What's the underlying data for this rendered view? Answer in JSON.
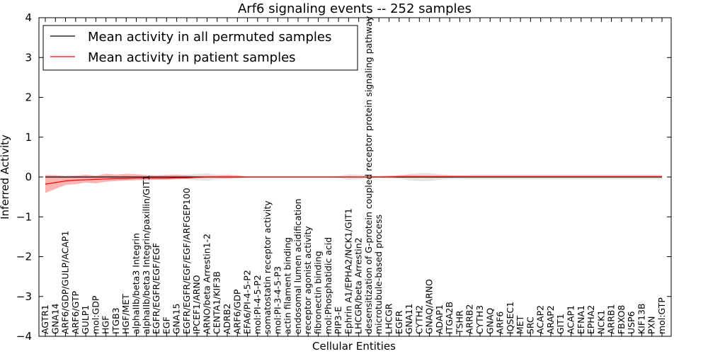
{
  "chart_data": {
    "type": "line",
    "title": "Arf6 signaling events -- 252 samples",
    "xlabel": "Cellular Entities",
    "ylabel": "Inferred Activity",
    "ylim": [
      -4,
      4
    ],
    "yticks": [
      -4,
      -3,
      -2,
      -1,
      0,
      1,
      2,
      3,
      4
    ],
    "grid": false,
    "legend_position": "top-left",
    "categories": [
      "AGTR1",
      "GNA14",
      "ARF6/GDP/GULP/ACAP1",
      "ARF6/GTP",
      "GULP1",
      "mol:GDP",
      "HGF",
      "ITGB3",
      "HGF/MET",
      "alphaIIb/beta3 Integrin",
      "alphaIIb/beta3 Integrin/paxillin/GIT1",
      "EGFR/EGFR/EGF/EGF",
      "EGF",
      "GNA15",
      "EGFR/EGFR/EGF/EGF/ARFGEP100",
      "IPCEF1/ARNO",
      "ARNO/beta Arrestin1-2",
      "CENTA1/KIF3B",
      "ADRB2",
      "ARF6/GDP",
      "EFA6/PI-4-5-P2",
      "mol:PI-4-5-P2",
      "somatostatin receptor activity",
      "mol:PI-3-4-5-P3",
      "actin filament binding",
      "endosomal lumen acidification",
      "receptor agonist activity",
      "fibronectin binding",
      "mol:Phosphatidic acid",
      "PIP3-E",
      "Ephrin A1/EPHA2/NCK1/GIT1",
      "LHCGR/beta Arrestin2",
      "desensitization of G-protein coupled receptor protein signaling pathway",
      "microtubule-based process",
      "LHCGR",
      "EGFR",
      "GNA11",
      "CYTH2",
      "GNAQ/ARNO",
      "ADAP1",
      "ITGA2B",
      "TSHR",
      "ARRB2",
      "CYTH3",
      "GNAQ",
      "ARF6",
      "IQSEC1",
      "MET",
      "SRC",
      "ACAP2",
      "ARAP2",
      "GIT1",
      "ACAP1",
      "EFNA1",
      "EPHA2",
      "NCK1",
      "ARRB1",
      "FBXO8",
      "USP6",
      "KIF13B",
      "PXN",
      "mol:GTP"
    ],
    "series": [
      {
        "name": "Mean activity in all permuted samples",
        "color": "#000000",
        "values": [
          0.0,
          0.0,
          0.0,
          0.0,
          0.0,
          0.0,
          0.0,
          0.0,
          0.0,
          0.0,
          0.0,
          0.0,
          0.0,
          0.0,
          0.0,
          0.0,
          0.0,
          0.0,
          0.0,
          0.0,
          0.0,
          0.0,
          0.0,
          0.0,
          0.0,
          0.0,
          0.0,
          0.0,
          0.0,
          0.0,
          0.0,
          0.0,
          0.0,
          0.0,
          0.0,
          0.0,
          0.0,
          0.0,
          0.0,
          0.0,
          0.0,
          0.0,
          0.0,
          0.0,
          0.0,
          0.0,
          0.0,
          0.0,
          0.0,
          0.0,
          0.0,
          0.0,
          0.0,
          0.0,
          0.0,
          0.0,
          0.0,
          0.0,
          0.0,
          0.0,
          0.0,
          0.0
        ],
        "band_lower": [
          -0.05,
          -0.05,
          -0.04,
          -0.04,
          -0.04,
          -0.04,
          -0.04,
          -0.04,
          -0.04,
          -0.04,
          -0.04,
          -0.04,
          -0.05,
          -0.05,
          -0.06,
          -0.08,
          -0.09,
          -0.06,
          -0.05,
          -0.04,
          -0.01,
          -0.01,
          -0.01,
          -0.01,
          -0.01,
          -0.01,
          -0.01,
          -0.01,
          -0.01,
          -0.02,
          -0.07,
          -0.06,
          -0.04,
          -0.02,
          -0.03,
          -0.04,
          -0.08,
          -0.1,
          -0.1,
          -0.07,
          -0.05,
          -0.05,
          -0.06,
          -0.06,
          -0.06,
          -0.06,
          -0.06,
          -0.06,
          -0.06,
          -0.06,
          -0.06,
          -0.06,
          -0.06,
          -0.06,
          -0.06,
          -0.06,
          -0.06,
          -0.06,
          -0.06,
          -0.06,
          -0.06,
          -0.06
        ],
        "band_upper": [
          0.05,
          0.05,
          0.04,
          0.04,
          0.04,
          0.04,
          0.04,
          0.04,
          0.04,
          0.04,
          0.04,
          0.04,
          0.05,
          0.05,
          0.06,
          0.08,
          0.09,
          0.06,
          0.05,
          0.04,
          0.01,
          0.01,
          0.01,
          0.01,
          0.01,
          0.01,
          0.01,
          0.01,
          0.01,
          0.02,
          0.07,
          0.06,
          0.04,
          0.02,
          0.03,
          0.04,
          0.08,
          0.1,
          0.1,
          0.07,
          0.05,
          0.05,
          0.06,
          0.06,
          0.06,
          0.06,
          0.06,
          0.06,
          0.06,
          0.06,
          0.06,
          0.06,
          0.06,
          0.06,
          0.06,
          0.06,
          0.06,
          0.06,
          0.06,
          0.06,
          0.06,
          0.06
        ]
      },
      {
        "name": "Mean activity in patient samples",
        "color": "#ff0000",
        "band_color": "#ff9999",
        "values": [
          -0.18,
          -0.14,
          -0.1,
          -0.08,
          -0.07,
          -0.06,
          -0.05,
          -0.04,
          -0.04,
          -0.03,
          -0.03,
          -0.03,
          -0.03,
          -0.02,
          -0.02,
          -0.01,
          0.0,
          0.0,
          0.0,
          0.0,
          0.0,
          0.0,
          0.0,
          0.0,
          0.0,
          0.0,
          0.0,
          0.0,
          0.0,
          0.0,
          0.0,
          0.0,
          0.0,
          0.0,
          0.0,
          0.01,
          0.01,
          0.01,
          0.01,
          0.01,
          0.01,
          0.01,
          0.01,
          0.01,
          0.01,
          0.01,
          0.01,
          0.01,
          0.01,
          0.01,
          0.01,
          0.01,
          0.01,
          0.01,
          0.01,
          0.01,
          0.01,
          0.01,
          0.01,
          0.01,
          0.01,
          0.01
        ],
        "band_lower": [
          -0.4,
          -0.3,
          -0.2,
          -0.18,
          -0.14,
          -0.16,
          -0.12,
          -0.1,
          -0.09,
          -0.08,
          -0.08,
          -0.07,
          -0.07,
          -0.06,
          -0.05,
          -0.03,
          -0.02,
          -0.02,
          -0.03,
          -0.02,
          -0.01,
          -0.01,
          -0.01,
          -0.01,
          -0.01,
          -0.01,
          -0.01,
          -0.01,
          -0.01,
          -0.01,
          -0.01,
          -0.01,
          -0.01,
          -0.01,
          -0.01,
          -0.02,
          -0.02,
          -0.02,
          -0.02,
          -0.02,
          -0.02,
          -0.01,
          -0.01,
          -0.01,
          -0.01,
          -0.01,
          -0.01,
          -0.01,
          -0.01,
          -0.01,
          -0.01,
          -0.01,
          -0.01,
          -0.01,
          -0.01,
          -0.01,
          -0.01,
          -0.01,
          -0.01,
          -0.01,
          -0.01,
          -0.01
        ],
        "band_upper": [
          0.05,
          0.04,
          0.02,
          0.03,
          0.06,
          0.03,
          0.08,
          0.06,
          0.08,
          0.07,
          0.05,
          0.04,
          0.05,
          0.06,
          0.04,
          0.02,
          0.03,
          0.03,
          0.05,
          0.04,
          0.01,
          0.01,
          0.01,
          0.01,
          0.01,
          0.01,
          0.01,
          0.01,
          0.01,
          0.01,
          0.01,
          0.01,
          0.01,
          0.02,
          0.03,
          0.04,
          0.05,
          0.04,
          0.04,
          0.04,
          0.04,
          0.03,
          0.03,
          0.03,
          0.03,
          0.03,
          0.03,
          0.03,
          0.03,
          0.03,
          0.03,
          0.03,
          0.03,
          0.03,
          0.03,
          0.03,
          0.03,
          0.03,
          0.03,
          0.03,
          0.03,
          0.03
        ]
      }
    ],
    "permuted_band_color": "#cccccc"
  }
}
